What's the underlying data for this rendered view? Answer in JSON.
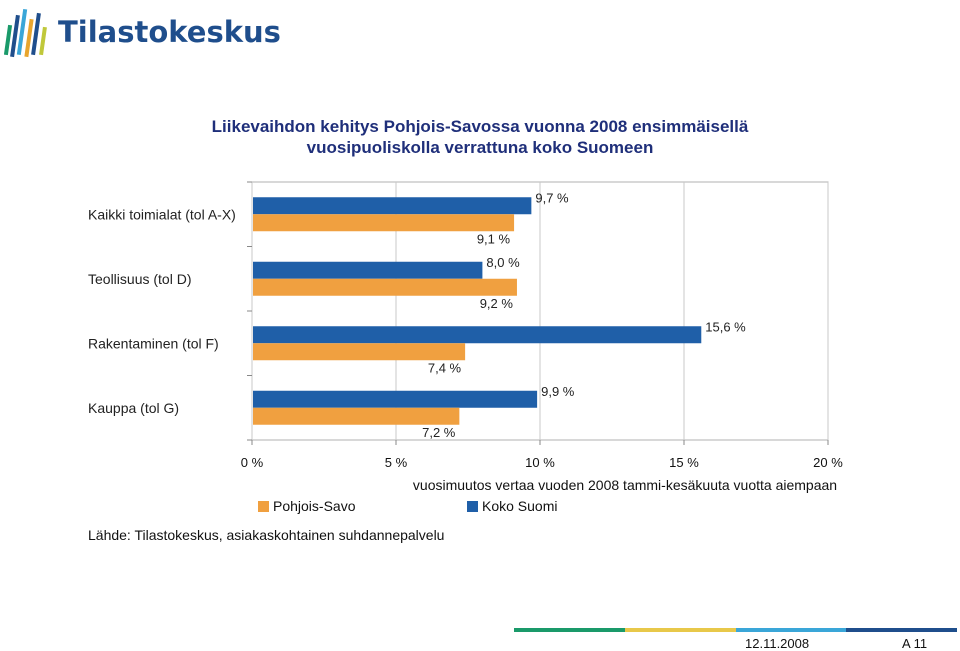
{
  "logo": {
    "text": "Tilastokeskus",
    "colors": [
      "#1a9a6a",
      "#e8a52e",
      "#1f4e8c",
      "#3aa6d8",
      "#c0c83a"
    ]
  },
  "chart_data": {
    "type": "bar",
    "orientation": "horizontal",
    "title_line1": "Liikevaihdon kehitys Pohjois-Savossa vuonna 2008 ensimmäisellä",
    "title_line2": "vuosipuoliskolla verrattuna koko Suomeen",
    "categories": [
      "Kaikki toimialat (tol A-X)",
      "Teollisuus (tol D)",
      "Rakentaminen (tol F)",
      "Kauppa (tol G)"
    ],
    "series": [
      {
        "name": "Koko Suomi",
        "color": "#1f5fa8",
        "values": [
          9.7,
          8.0,
          15.6,
          9.9
        ],
        "labels": [
          "9,7 %",
          "8,0 %",
          "15,6 %",
          "9,9 %"
        ]
      },
      {
        "name": "Pohjois-Savo",
        "color": "#f0a040",
        "values": [
          9.1,
          9.2,
          7.4,
          7.2
        ],
        "labels": [
          "9,1 %",
          "9,2 %",
          "7,4 %",
          "7,2 %"
        ]
      }
    ],
    "xlim": [
      0,
      20
    ],
    "xticks": [
      0,
      5,
      10,
      15,
      20
    ],
    "xtick_labels": [
      "0 %",
      "5 %",
      "10 %",
      "15 %",
      "20 %"
    ],
    "xlabel": "vuosimuutos vertaa vuoden 2008 tammi-kesäkuuta vuotta aiempaan",
    "grid": true,
    "legend_placement": "bottom"
  },
  "source": "Lähde: Tilastokeskus, asiakaskohtainen suhdannepalvelu",
  "footer": {
    "date": "12.11.2008",
    "page": "A 11",
    "bar_colors": [
      "#1a9a6a",
      "#e8c84a",
      "#3aa6d8",
      "#1f4e8c"
    ]
  }
}
